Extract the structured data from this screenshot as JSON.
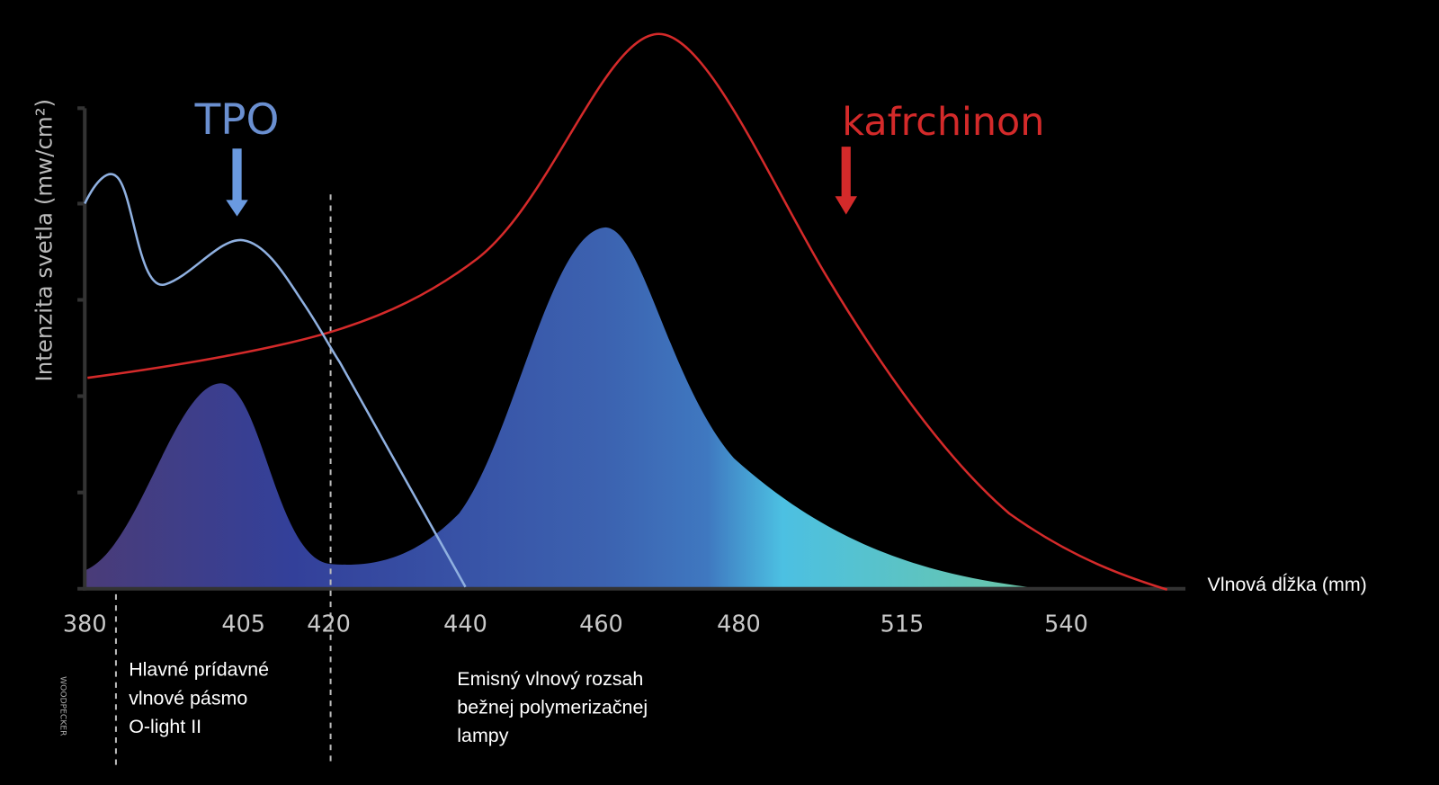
{
  "y_axis_label": "Intenzita svetla (mw/cm²)",
  "x_axis_label": "Vlnová dĺžka (mm)",
  "x_ticks": [
    "380",
    "405",
    "420",
    "440",
    "460",
    "480",
    "515",
    "540"
  ],
  "curve_labels": {
    "tpo": "TPO",
    "camphorquinone": "kafrchinon"
  },
  "annotations": {
    "olight_band": [
      "Hlavné prídavné",
      "vlnové pásmo",
      "O-light II"
    ],
    "lamp_range": [
      "Emisný vlnový rozsah",
      "bežnej polymerizačnej",
      "lampy"
    ]
  },
  "logo": "WOODPECKER"
}
